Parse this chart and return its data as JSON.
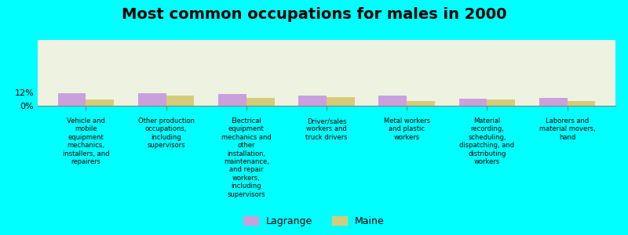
{
  "title": "Most common occupations for males in 2000",
  "categories": [
    "Vehicle and\nmobile\nequipment\nmechanics,\ninstallers, and\nrepairers",
    "Other production\noccupations,\nincluding\nsupervisors",
    "Electrical\nequipment\nmechanics and\nother\ninstallation,\nmaintenance,\nand repair\nworkers,\nincluding\nsupervisors",
    "Driver/sales\nworkers and\ntruck drivers",
    "Metal workers\nand plastic\nworkers",
    "Material\nrecording,\nscheduling,\ndispatching, and\ndistributing\nworkers",
    "Laborers and\nmaterial movers,\nhand"
  ],
  "lagrange_values": [
    11.5,
    11.5,
    11.0,
    9.5,
    9.5,
    6.5,
    7.0
  ],
  "maine_values": [
    5.5,
    9.0,
    7.0,
    8.0,
    4.5,
    5.5,
    4.5
  ],
  "lagrange_color": "#c9a0dc",
  "maine_color": "#d4cc7a",
  "background_color": "#00ffff",
  "plot_bg_color": "#eef2e0",
  "ylim": [
    0,
    60
  ],
  "ytick_positions": [
    0,
    12
  ],
  "ytick_labels": [
    "0%",
    "12%"
  ],
  "bar_width": 0.35,
  "legend_labels": [
    "Lagrange",
    "Maine"
  ],
  "title_fontsize": 14
}
